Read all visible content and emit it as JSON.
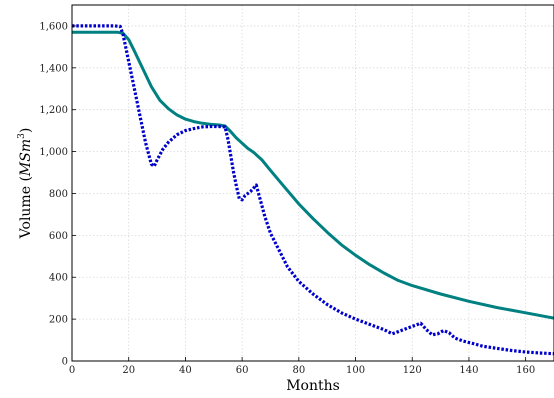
{
  "chart_data": {
    "type": "line",
    "title": "",
    "xlabel": "Months",
    "ylabel": "Volume (MSm³)",
    "ylabel_prefix": "Volume (",
    "ylabel_unit": "MSm",
    "ylabel_exp": "3",
    "ylabel_suffix": ")",
    "xlim": [
      0,
      170
    ],
    "ylim": [
      0,
      1700
    ],
    "xticks": [
      0,
      20,
      40,
      60,
      80,
      100,
      120,
      140,
      160
    ],
    "yticks": [
      0,
      200,
      400,
      600,
      800,
      1000,
      1200,
      1400,
      1600
    ],
    "xtick_labels": [
      "0",
      "20",
      "40",
      "60",
      "80",
      "100",
      "120",
      "140",
      "160"
    ],
    "ytick_labels": [
      "0",
      "200",
      "400",
      "600",
      "800",
      "1,000",
      "1,200",
      "1,400",
      "1,600"
    ],
    "grid": true,
    "legend": "none",
    "series": [
      {
        "color": "#008080",
        "style": "solid",
        "x": [
          0,
          16,
          18,
          20,
          22,
          25,
          28,
          31,
          34,
          37,
          40,
          43,
          46,
          49,
          52,
          54,
          56,
          58,
          60,
          62,
          64,
          67,
          70,
          75,
          80,
          85,
          90,
          95,
          100,
          105,
          110,
          115,
          120,
          130,
          140,
          150,
          160,
          170
        ],
        "y": [
          1570,
          1570,
          1565,
          1535,
          1480,
          1395,
          1310,
          1245,
          1205,
          1175,
          1155,
          1143,
          1135,
          1130,
          1127,
          1122,
          1095,
          1065,
          1040,
          1015,
          997,
          960,
          910,
          830,
          750,
          680,
          615,
          555,
          505,
          460,
          420,
          385,
          360,
          320,
          285,
          255,
          230,
          205
        ]
      },
      {
        "color": "#0000cc",
        "style": "dotted",
        "x": [
          0,
          15,
          17,
          18,
          20,
          22,
          24,
          26,
          28,
          29,
          30,
          32,
          34,
          37,
          40,
          43,
          46,
          49,
          52,
          54,
          55,
          56,
          57,
          58,
          59,
          60,
          61,
          62,
          63,
          64,
          65,
          66,
          67,
          68,
          70,
          73,
          76,
          80,
          85,
          90,
          95,
          100,
          105,
          110,
          113,
          115,
          118,
          120,
          123,
          125,
          127,
          129,
          131,
          133,
          135,
          138,
          141,
          145,
          150,
          155,
          160,
          165,
          170
        ],
        "y": [
          1600,
          1600,
          1598,
          1560,
          1430,
          1300,
          1170,
          1040,
          940,
          930,
          960,
          1010,
          1045,
          1080,
          1100,
          1110,
          1118,
          1120,
          1120,
          1118,
          1060,
          980,
          900,
          835,
          775,
          770,
          790,
          800,
          810,
          825,
          840,
          790,
          740,
          690,
          610,
          530,
          450,
          380,
          320,
          270,
          230,
          200,
          175,
          150,
          130,
          140,
          155,
          165,
          180,
          150,
          125,
          130,
          145,
          135,
          110,
          95,
          85,
          70,
          60,
          50,
          43,
          38,
          35
        ]
      }
    ]
  }
}
